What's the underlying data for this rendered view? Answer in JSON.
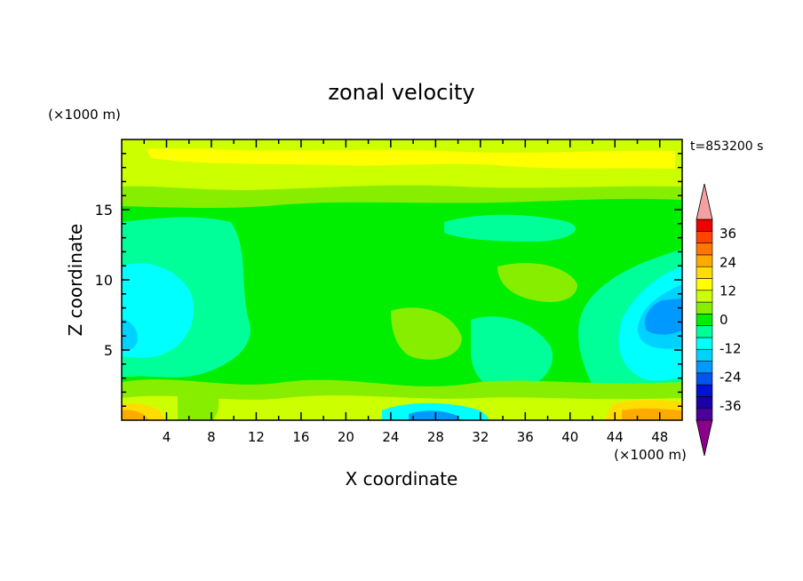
{
  "chart_data": {
    "type": "heatmap",
    "title": "zonal velocity",
    "xlabel": "X coordinate",
    "ylabel": "Z coordinate",
    "x_unit": "(×1000 m)",
    "y_unit": "(×1000 m)",
    "time_label": "t=853200 s",
    "xlim": [
      0,
      50
    ],
    "ylim": [
      0,
      20
    ],
    "x_ticks": [
      4,
      8,
      12,
      16,
      20,
      24,
      28,
      32,
      36,
      40,
      44,
      48
    ],
    "y_ticks": [
      5,
      10,
      15
    ],
    "colorbar": {
      "labels": [
        36,
        24,
        12,
        0,
        -12,
        -24,
        -36
      ],
      "levels": [
        -42,
        -36,
        -30,
        -24,
        -18,
        -12,
        -6,
        0,
        6,
        12,
        18,
        24,
        30,
        36,
        42
      ],
      "colors": [
        "#8A008A",
        "#4B0099",
        "#1A00A8",
        "#0012D6",
        "#0055EE",
        "#0099FF",
        "#00D2FF",
        "#00FFFF",
        "#00FF99",
        "#00EE00",
        "#88EE00",
        "#CCFF00",
        "#FFFF00",
        "#FFDD00",
        "#FFAA00",
        "#FF7700",
        "#FF4400",
        "#EE0000",
        "#F4A0A0"
      ],
      "over_color": "#F4A0A0",
      "under_color": "#8A008A"
    },
    "grid": false,
    "legend": "colorbar-right"
  }
}
